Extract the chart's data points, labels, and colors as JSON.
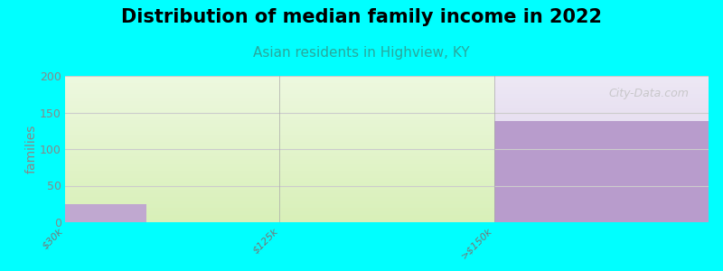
{
  "title": "Distribution of median family income in 2022",
  "subtitle": "Asian residents in Highview, KY",
  "title_fontsize": 15,
  "subtitle_fontsize": 11,
  "subtitle_color": "#29a89d",
  "background_color": "#00FFFF",
  "bar_categories": [
    "$30k",
    "$125k",
    ">$150k"
  ],
  "bar_values": [
    25,
    0,
    138
  ],
  "bar_colors": [
    "#b39dc0",
    "#c8e8a8",
    "#b39dc0"
  ],
  "ylim": [
    0,
    200
  ],
  "yticks": [
    0,
    50,
    100,
    150,
    200
  ],
  "ylabel": "families",
  "watermark": "City-Data.com",
  "grid_color": "#cccccc",
  "axes_bg_color": "#ffffff",
  "green_bg": "#d8f0b8",
  "purple_bg": "#d8cce8",
  "bar1_color": "#c0a8d0",
  "bar3_color": "#b89ccc"
}
